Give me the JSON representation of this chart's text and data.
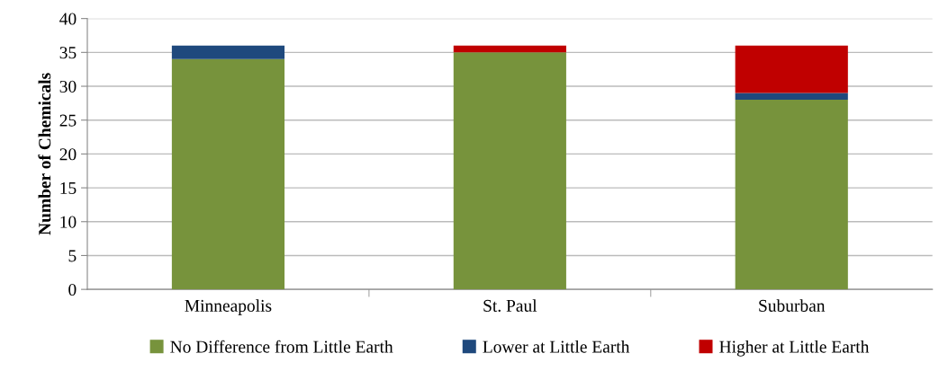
{
  "chart_data": {
    "type": "bar",
    "stacked": true,
    "ylabel": "Number of Chemicals",
    "categories": [
      "Minneapolis",
      "St. Paul",
      "Suburban"
    ],
    "series": [
      {
        "name": "No Difference from Little Earth",
        "color": "#77933c",
        "values": [
          34,
          35,
          28
        ]
      },
      {
        "name": "Lower at Little Earth",
        "color": "#1f497d",
        "values": [
          2,
          0,
          1
        ]
      },
      {
        "name": "Higher at Little Earth",
        "color": "#c00000",
        "values": [
          0,
          1,
          7
        ]
      }
    ],
    "ylim": [
      0,
      40
    ],
    "yticks": [
      0,
      5,
      10,
      15,
      20,
      25,
      30,
      35,
      40
    ],
    "grid": "y",
    "legend": "bottom"
  }
}
